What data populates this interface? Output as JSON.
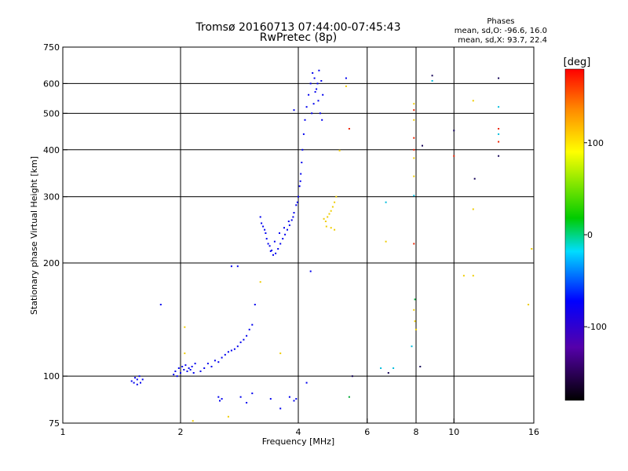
{
  "header": {
    "title_line1": "Tromsø 20160713 07:44:00-07:45:43",
    "title_line2": "RwPretec (8p)",
    "stats_title": "Phases",
    "stats_O": "mean, sd,O: -96.6, 16.0",
    "stats_X": "mean, sd,X: 93.7, 22.4"
  },
  "chart_data": {
    "type": "scatter",
    "xlabel": "Frequency [MHz]",
    "ylabel": "Stationary phase Virtual Height [km]",
    "xscale": "log",
    "yscale": "log",
    "xlim": [
      1,
      16
    ],
    "ylim": [
      75,
      750
    ],
    "x_ticks": [
      1,
      2,
      4,
      6,
      8,
      10,
      16
    ],
    "y_ticks": [
      75,
      100,
      200,
      300,
      400,
      500,
      600,
      750
    ],
    "grid": true,
    "colorbar": {
      "label": "[deg]",
      "range": [
        -180,
        180
      ],
      "ticks": [
        -100,
        0,
        100
      ]
    },
    "series": [
      {
        "color": "#0000ee",
        "points": [
          [
            1.5,
            97
          ],
          [
            1.53,
            99
          ],
          [
            1.55,
            98
          ],
          [
            1.57,
            100
          ],
          [
            1.58,
            96
          ],
          [
            1.6,
            98
          ],
          [
            1.55,
            95
          ],
          [
            1.52,
            96
          ],
          [
            1.78,
            155
          ],
          [
            1.92,
            101
          ],
          [
            1.94,
            103
          ],
          [
            1.96,
            100
          ],
          [
            1.98,
            105
          ],
          [
            2.0,
            102
          ],
          [
            2.02,
            106
          ],
          [
            2.04,
            104
          ],
          [
            2.06,
            107
          ],
          [
            2.08,
            103
          ],
          [
            2.1,
            105
          ],
          [
            2.12,
            104
          ],
          [
            2.14,
            106
          ],
          [
            2.16,
            102
          ],
          [
            2.18,
            108
          ],
          [
            2.25,
            103
          ],
          [
            2.3,
            105
          ],
          [
            2.35,
            108
          ],
          [
            2.4,
            106
          ],
          [
            2.45,
            110
          ],
          [
            2.5,
            109
          ],
          [
            2.55,
            112
          ],
          [
            2.6,
            114
          ],
          [
            2.65,
            116
          ],
          [
            2.7,
            117
          ],
          [
            2.75,
            118
          ],
          [
            2.8,
            120
          ],
          [
            2.85,
            123
          ],
          [
            2.9,
            125
          ],
          [
            2.95,
            128
          ],
          [
            3.0,
            133
          ],
          [
            3.05,
            137
          ],
          [
            3.1,
            155
          ],
          [
            2.5,
            88
          ],
          [
            2.52,
            86
          ],
          [
            2.55,
            87
          ],
          [
            2.7,
            196
          ],
          [
            2.8,
            196
          ],
          [
            2.85,
            88
          ],
          [
            2.95,
            85
          ],
          [
            3.05,
            90
          ],
          [
            3.4,
            87
          ],
          [
            3.6,
            82
          ],
          [
            3.8,
            88
          ],
          [
            3.9,
            86
          ],
          [
            3.95,
            87
          ],
          [
            4.2,
            96
          ],
          [
            3.2,
            265
          ],
          [
            3.25,
            250
          ],
          [
            3.3,
            240
          ],
          [
            3.35,
            225
          ],
          [
            3.4,
            215
          ],
          [
            3.45,
            210
          ],
          [
            3.5,
            212
          ],
          [
            3.55,
            218
          ],
          [
            3.6,
            225
          ],
          [
            3.65,
            232
          ],
          [
            3.7,
            238
          ],
          [
            3.75,
            245
          ],
          [
            3.8,
            252
          ],
          [
            3.85,
            260
          ],
          [
            3.9,
            272
          ],
          [
            3.95,
            285
          ],
          [
            4.0,
            300
          ],
          [
            4.03,
            320
          ],
          [
            4.06,
            345
          ],
          [
            4.08,
            370
          ],
          [
            4.1,
            400
          ],
          [
            4.13,
            440
          ],
          [
            4.16,
            480
          ],
          [
            4.2,
            520
          ],
          [
            4.25,
            560
          ],
          [
            4.3,
            600
          ],
          [
            4.35,
            640
          ],
          [
            4.4,
            620
          ],
          [
            4.45,
            580
          ],
          [
            4.5,
            540
          ],
          [
            4.55,
            500
          ],
          [
            4.6,
            480
          ],
          [
            4.62,
            560
          ],
          [
            4.58,
            610
          ],
          [
            4.52,
            650
          ],
          [
            4.48,
            600
          ],
          [
            4.42,
            570
          ],
          [
            4.38,
            530
          ],
          [
            4.33,
            500
          ],
          [
            3.22,
            255
          ],
          [
            3.28,
            245
          ],
          [
            3.32,
            232
          ],
          [
            3.38,
            222
          ],
          [
            3.42,
            216
          ],
          [
            3.48,
            228
          ],
          [
            3.58,
            240
          ],
          [
            3.68,
            248
          ],
          [
            3.78,
            258
          ],
          [
            3.88,
            265
          ],
          [
            3.98,
            290
          ],
          [
            4.05,
            330
          ],
          [
            4.3,
            190
          ],
          [
            3.9,
            510
          ],
          [
            5.3,
            620
          ]
        ]
      },
      {
        "color": "#eecc00",
        "points": [
          [
            4.65,
            262
          ],
          [
            4.7,
            258
          ],
          [
            4.75,
            265
          ],
          [
            4.8,
            270
          ],
          [
            4.85,
            275
          ],
          [
            4.9,
            282
          ],
          [
            4.95,
            290
          ],
          [
            5.0,
            300
          ],
          [
            4.72,
            250
          ],
          [
            4.85,
            248
          ],
          [
            4.95,
            245
          ],
          [
            5.1,
            398
          ],
          [
            5.3,
            590
          ],
          [
            2.05,
            135
          ],
          [
            2.05,
            115
          ],
          [
            2.65,
            78
          ],
          [
            2.15,
            76
          ],
          [
            3.2,
            178
          ],
          [
            3.6,
            115
          ],
          [
            6.7,
            228
          ],
          [
            7.9,
            150
          ],
          [
            7.95,
            140
          ],
          [
            8.0,
            133
          ],
          [
            11.2,
            540
          ],
          [
            11.2,
            278
          ],
          [
            10.6,
            185
          ],
          [
            11.2,
            185
          ],
          [
            15.5,
            155
          ],
          [
            15.8,
            218
          ],
          [
            7.9,
            530
          ],
          [
            7.9,
            480
          ],
          [
            7.9,
            380
          ],
          [
            7.9,
            340
          ]
        ]
      },
      {
        "color": "#ee2200",
        "points": [
          [
            5.4,
            455
          ],
          [
            7.9,
            510
          ],
          [
            7.9,
            430
          ],
          [
            7.9,
            400
          ],
          [
            7.9,
            225
          ],
          [
            10.0,
            385
          ],
          [
            13.0,
            455
          ],
          [
            13.0,
            420
          ]
        ]
      },
      {
        "color": "#00bbdd",
        "points": [
          [
            6.5,
            105
          ],
          [
            6.7,
            290
          ],
          [
            7.0,
            105
          ],
          [
            7.8,
            120
          ],
          [
            7.9,
            302
          ],
          [
            8.8,
            610
          ],
          [
            13.0,
            520
          ],
          [
            13.0,
            440
          ]
        ]
      },
      {
        "color": "#110055",
        "points": [
          [
            5.5,
            100
          ],
          [
            6.8,
            102
          ],
          [
            8.2,
            106
          ],
          [
            8.3,
            410
          ],
          [
            8.8,
            630
          ],
          [
            10.0,
            450
          ],
          [
            11.3,
            335
          ],
          [
            13.0,
            620
          ],
          [
            13.0,
            385
          ]
        ]
      },
      {
        "color": "#00aa33",
        "points": [
          [
            5.4,
            88
          ],
          [
            7.95,
            160
          ]
        ]
      }
    ]
  }
}
